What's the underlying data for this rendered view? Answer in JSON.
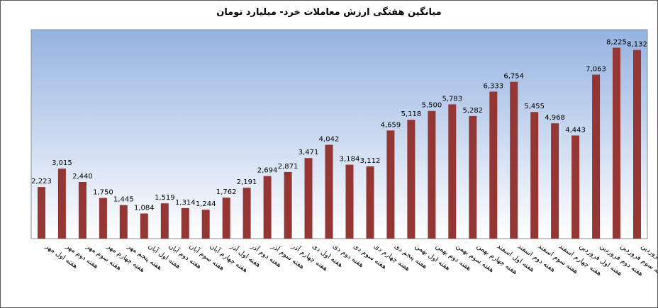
{
  "chart_data": {
    "type": "bar",
    "title": "میانگین هفتگی ارزش معاملات خرد- میلیارد تومان",
    "xlabel": "",
    "ylabel": "",
    "ylim": [
      0,
      9000
    ],
    "grid": false,
    "legend": "none",
    "colors": {
      "bar": "#943634",
      "highlight": "#ffff00",
      "plot_top": "#95b3e1",
      "plot_bottom": "#ffffff"
    },
    "highlight_index": 30,
    "categories": [
      "هفته اول مهر",
      "هفته دوم مهر",
      "هفته سوم مهر",
      "هفته چهارم مهر",
      "هفته پنجم مهر",
      "هفته اول آبان",
      "هفته دوم آبان",
      "هفته سوم آبان",
      "هفته چهارم آبان",
      "هفته اول آذر",
      "هفته دوم آذر",
      "هفته سوم آذر",
      "هفته چهارم آذر",
      "هفته اول دی",
      "هفته دوم دی",
      "هفته سوم دی",
      "هفته چهارم دی",
      "هفته پنجم دی",
      "هفته اول بهمن",
      "هفته دوم بهمن",
      "هفته سوم بهمن",
      "هفته چهارم بهمن",
      "هفته اول اسفند",
      "هفته دوم اسفند",
      "هفته سوم اسفند",
      "هفته چهارم اسفند",
      "هفته اول فروردین",
      "هفته دوم فروردین",
      "هفته سوم فروردین",
      "هفته چهارم فروردین"
    ],
    "values": [
      2223,
      3015,
      2440,
      1750,
      1445,
      1084,
      1519,
      1314,
      1244,
      1762,
      2191,
      2694,
      2871,
      3471,
      4042,
      3184,
      3112,
      4659,
      5118,
      5500,
      5783,
      5282,
      6333,
      6754,
      5455,
      4968,
      4443,
      7063,
      8225,
      8132
    ],
    "value_labels": [
      "2,223",
      "3,015",
      "2,440",
      "1,750",
      "1,445",
      "1,084",
      "1,519",
      "1,314",
      "1,244",
      "1,762",
      "2,191",
      "2,694",
      "2,871",
      "3,471",
      "4,042",
      "3,184",
      "3,112",
      "4,659",
      "5,118",
      "5,500",
      "5,783",
      "5,282",
      "6,333",
      "6,754",
      "5,455",
      "4,968",
      "4,443",
      "7,063",
      "8,225",
      "8,132"
    ]
  }
}
